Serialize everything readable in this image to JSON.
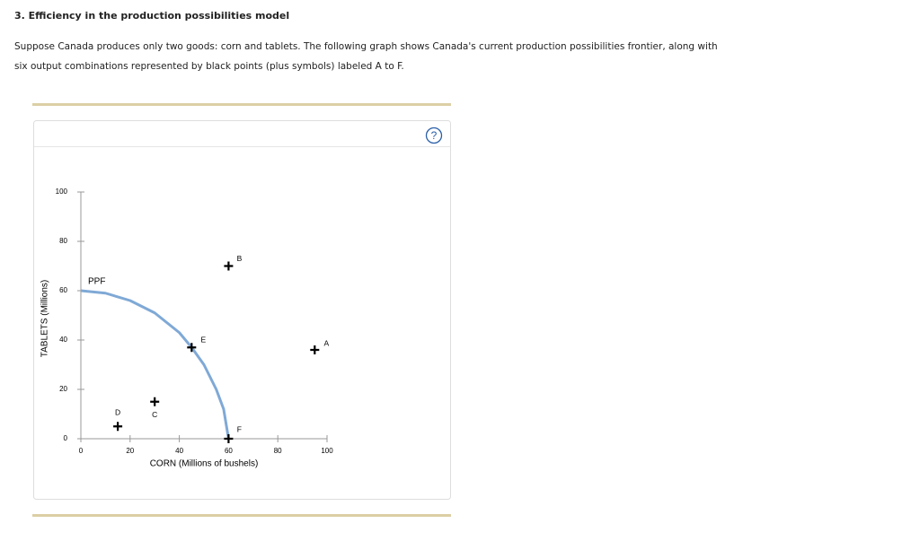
{
  "header": {
    "title": "3. Efficiency in the production possibilities model"
  },
  "intro": [
    "Suppose Canada produces only two goods: corn and tablets. The following graph shows Canada's current production possibilities frontier, along with",
    "six output combinations represented by black points (plus symbols) labeled A to F."
  ],
  "help": "?",
  "chart_data": {
    "type": "scatter",
    "xlabel": "CORN (Millions of bushels)",
    "ylabel": "TABLETS (Millions)",
    "xlim": [
      0,
      100
    ],
    "ylim": [
      0,
      100
    ],
    "xticks": [
      0,
      20,
      40,
      60,
      80,
      100
    ],
    "yticks": [
      0,
      20,
      40,
      60,
      80,
      100
    ],
    "ppf": {
      "label": "PPF",
      "color": "#7fa9d6",
      "x": [
        0,
        10,
        20,
        30,
        40,
        45,
        50,
        55,
        58,
        60
      ],
      "values": [
        60,
        59,
        56,
        51,
        43,
        37,
        30,
        20,
        12,
        0
      ]
    },
    "points": {
      "color": "#000000",
      "labels": [
        "A",
        "B",
        "C",
        "D",
        "E",
        "F"
      ],
      "x": [
        95,
        60,
        30,
        15,
        45,
        60
      ],
      "values": [
        36,
        70,
        15,
        5,
        37,
        0
      ]
    }
  }
}
